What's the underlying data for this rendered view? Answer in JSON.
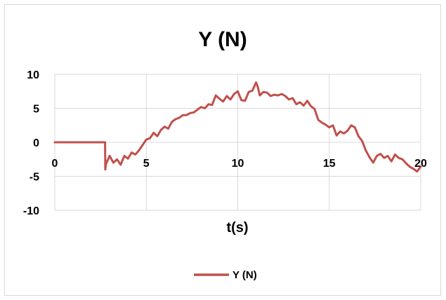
{
  "chart_data": {
    "type": "line",
    "title": "Y (N)",
    "xlabel": "t(s)",
    "ylabel": "",
    "xlim": [
      0,
      20
    ],
    "ylim": [
      -10,
      10
    ],
    "x_ticks": [
      "0",
      "5",
      "10",
      "15",
      "20"
    ],
    "y_ticks": [
      "10",
      "5",
      "0",
      "-5",
      "-10"
    ],
    "x_tick_values": [
      0,
      5,
      10,
      15,
      20
    ],
    "y_tick_values": [
      10,
      5,
      0,
      -5,
      -10
    ],
    "grid": true,
    "legend_position": "bottom",
    "series": [
      {
        "name": "Y (N)",
        "color": "#c0504d",
        "x": [
          0,
          2.75,
          2.76,
          2.8,
          3.0,
          3.2,
          3.4,
          3.6,
          3.8,
          4.0,
          4.2,
          4.4,
          4.6,
          4.8,
          5.0,
          5.2,
          5.4,
          5.6,
          5.8,
          6.0,
          6.2,
          6.4,
          6.6,
          6.8,
          7.0,
          7.2,
          7.4,
          7.6,
          7.8,
          8.0,
          8.2,
          8.4,
          8.6,
          8.8,
          9.0,
          9.2,
          9.4,
          9.6,
          9.8,
          10.0,
          10.2,
          10.4,
          10.6,
          10.8,
          11.0,
          11.1,
          11.2,
          11.4,
          11.6,
          11.8,
          12.0,
          12.2,
          12.4,
          12.6,
          12.8,
          13.0,
          13.2,
          13.4,
          13.6,
          13.8,
          14.0,
          14.2,
          14.4,
          14.6,
          14.8,
          15.0,
          15.2,
          15.4,
          15.6,
          15.8,
          16.0,
          16.2,
          16.4,
          16.6,
          16.8,
          17.0,
          17.2,
          17.4,
          17.6,
          17.8,
          18.0,
          18.2,
          18.4,
          18.6,
          18.8,
          19.0,
          19.2,
          19.4,
          19.6,
          19.8,
          20.0
        ],
        "values": [
          0,
          0,
          -4.0,
          -3.2,
          -2.0,
          -3.0,
          -2.5,
          -3.3,
          -2.0,
          -2.4,
          -1.5,
          -1.8,
          -1.2,
          -0.4,
          0.4,
          0.6,
          1.4,
          0.9,
          1.8,
          2.3,
          2.0,
          3.0,
          3.4,
          3.6,
          4.0,
          4.0,
          4.3,
          4.4,
          4.8,
          5.2,
          5.0,
          5.6,
          5.5,
          6.9,
          6.4,
          6.0,
          6.8,
          6.3,
          7.1,
          7.5,
          6.2,
          6.1,
          7.4,
          7.6,
          8.8,
          8.1,
          6.9,
          7.4,
          7.3,
          6.8,
          7.0,
          6.9,
          7.1,
          6.8,
          6.3,
          6.5,
          5.6,
          5.9,
          5.4,
          6.1,
          5.3,
          4.9,
          3.3,
          2.9,
          2.6,
          2.2,
          2.5,
          1.0,
          1.6,
          1.3,
          1.7,
          2.5,
          2.2,
          0.9,
          0.2,
          -1.2,
          -2.2,
          -3.0,
          -2.0,
          -1.7,
          -2.3,
          -2.0,
          -2.8,
          -1.8,
          -2.3,
          -2.5,
          -3.1,
          -3.6,
          -3.9,
          -4.3,
          -3.6
        ]
      }
    ]
  }
}
